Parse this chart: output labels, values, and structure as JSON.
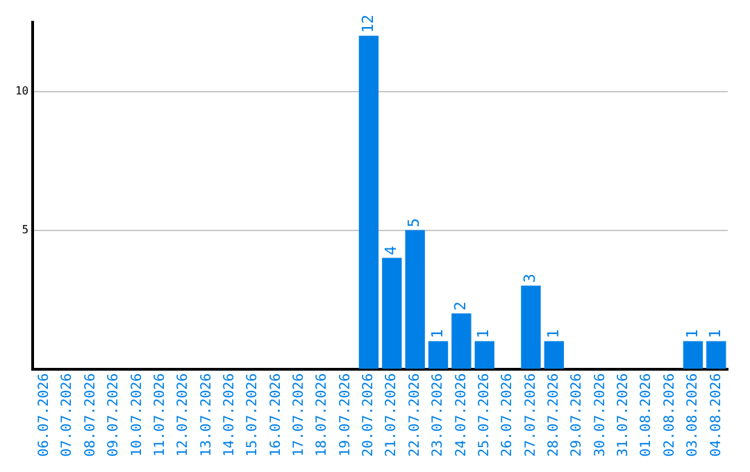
{
  "chart_data": {
    "type": "bar",
    "categories": [
      "06.07.2026",
      "07.07.2026",
      "08.07.2026",
      "09.07.2026",
      "10.07.2026",
      "11.07.2026",
      "12.07.2026",
      "13.07.2026",
      "14.07.2026",
      "15.07.2026",
      "16.07.2026",
      "17.07.2026",
      "18.07.2026",
      "19.07.2026",
      "20.07.2026",
      "21.07.2026",
      "22.07.2026",
      "23.07.2026",
      "24.07.2026",
      "25.07.2026",
      "26.07.2026",
      "27.07.2026",
      "28.07.2026",
      "29.07.2026",
      "30.07.2026",
      "31.07.2026",
      "01.08.2026",
      "02.08.2026",
      "03.08.2026",
      "04.08.2026"
    ],
    "values": [
      0,
      0,
      0,
      0,
      0,
      0,
      0,
      0,
      0,
      0,
      0,
      0,
      0,
      0,
      12,
      4,
      5,
      1,
      2,
      1,
      0,
      3,
      1,
      0,
      0,
      0,
      0,
      0,
      1,
      1
    ],
    "value_labels": [
      null,
      null,
      null,
      null,
      null,
      null,
      null,
      null,
      null,
      null,
      null,
      null,
      null,
      null,
      "12",
      "4",
      "5",
      "1",
      "2",
      "1",
      null,
      "3",
      "1",
      null,
      null,
      null,
      null,
      null,
      "1",
      "1"
    ],
    "color": "#0080e6",
    "ylim": [
      0,
      12.5
    ],
    "yticks": [
      5,
      10
    ],
    "grid": "y",
    "legend": false
  }
}
